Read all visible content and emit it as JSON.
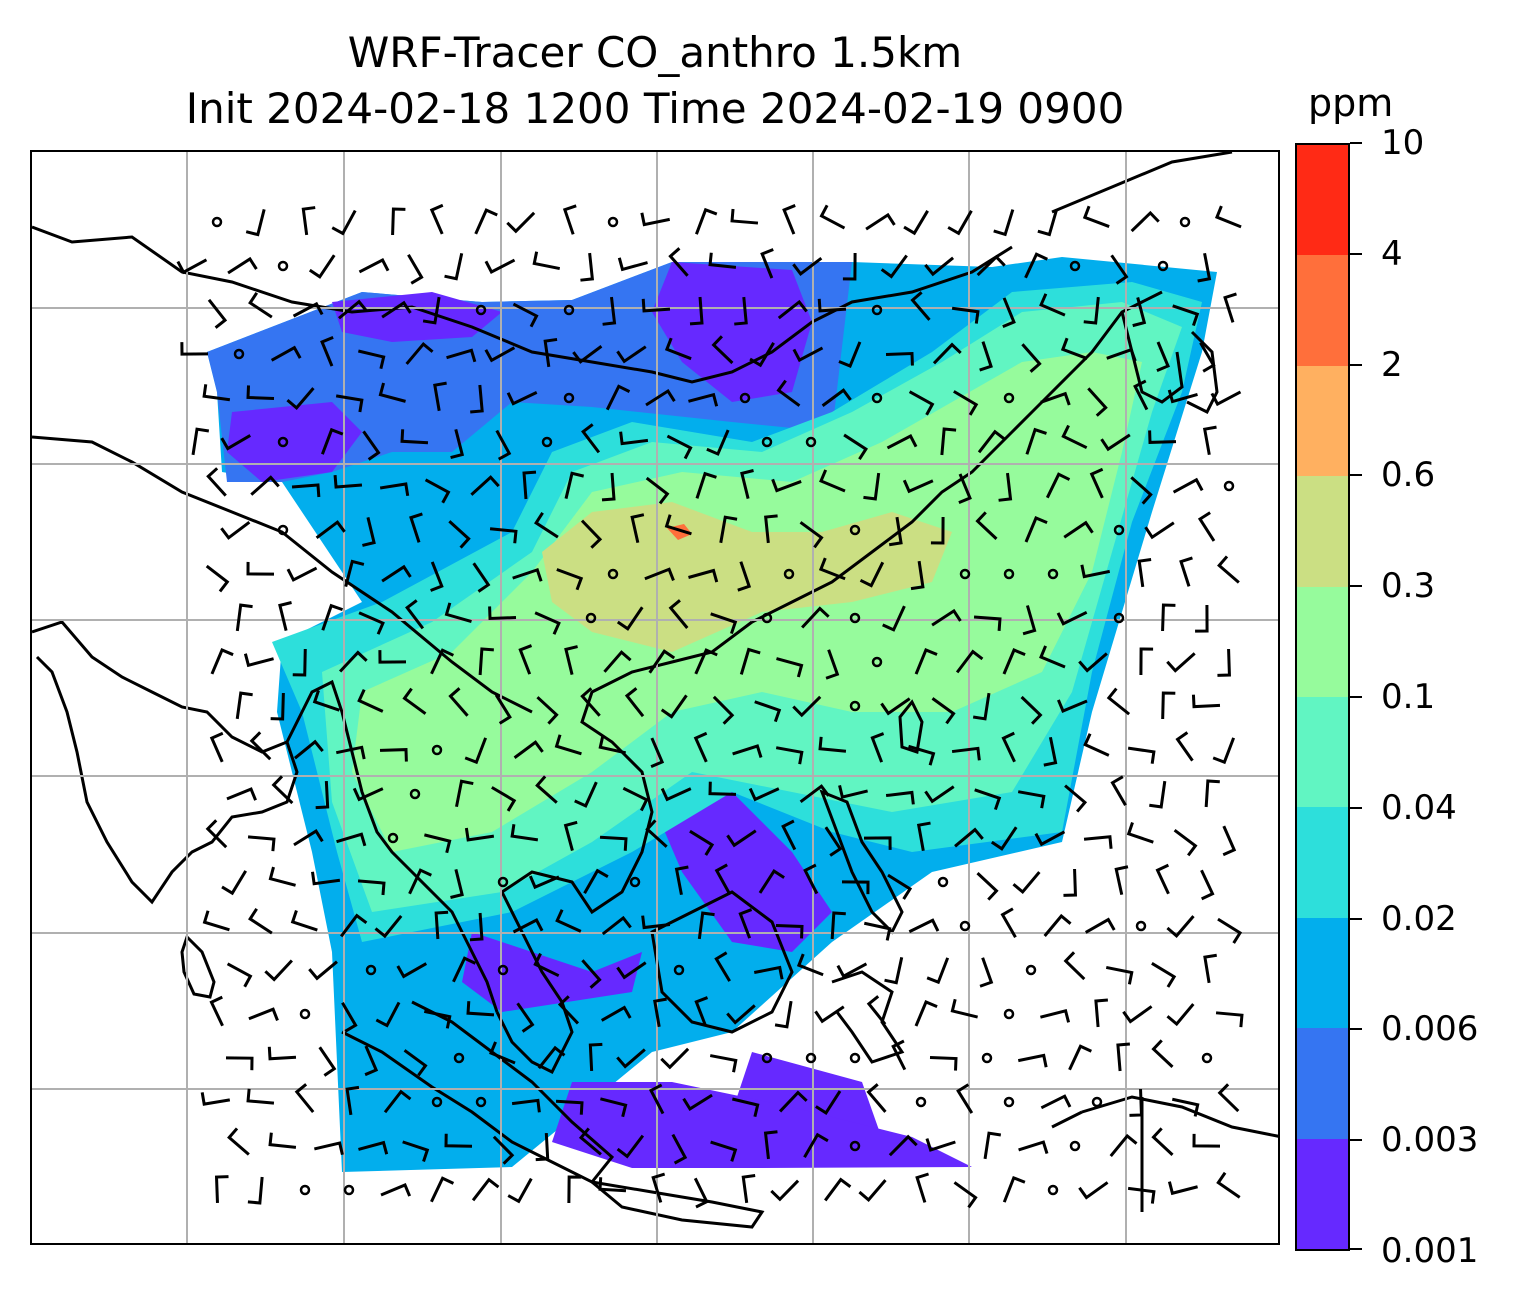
{
  "title": {
    "line1": "WRF-Tracer CO_anthro 1.5km",
    "line2": "Init 2024-02-18 1200 Time 2024-02-19 0900"
  },
  "colorbar": {
    "units": "ppm",
    "levels": [
      "0.001",
      "0.003",
      "0.006",
      "0.02",
      "0.04",
      "0.1",
      "0.3",
      "0.6",
      "2",
      "4",
      "10"
    ],
    "colors": [
      "#6629ff",
      "#3575f2",
      "#02aeed",
      "#2ddfdb",
      "#61f5c2",
      "#96fb9c",
      "#cbdf83",
      "#ffb060",
      "#ff6f3b",
      "#ff2a15"
    ]
  },
  "map": {
    "grid_color": "#b0b0b0",
    "coast_color": "#000000",
    "field_levels_shown": [
      "0.003",
      "0.006",
      "0.02",
      "0.04",
      "0.1",
      "0.3",
      "2"
    ]
  }
}
